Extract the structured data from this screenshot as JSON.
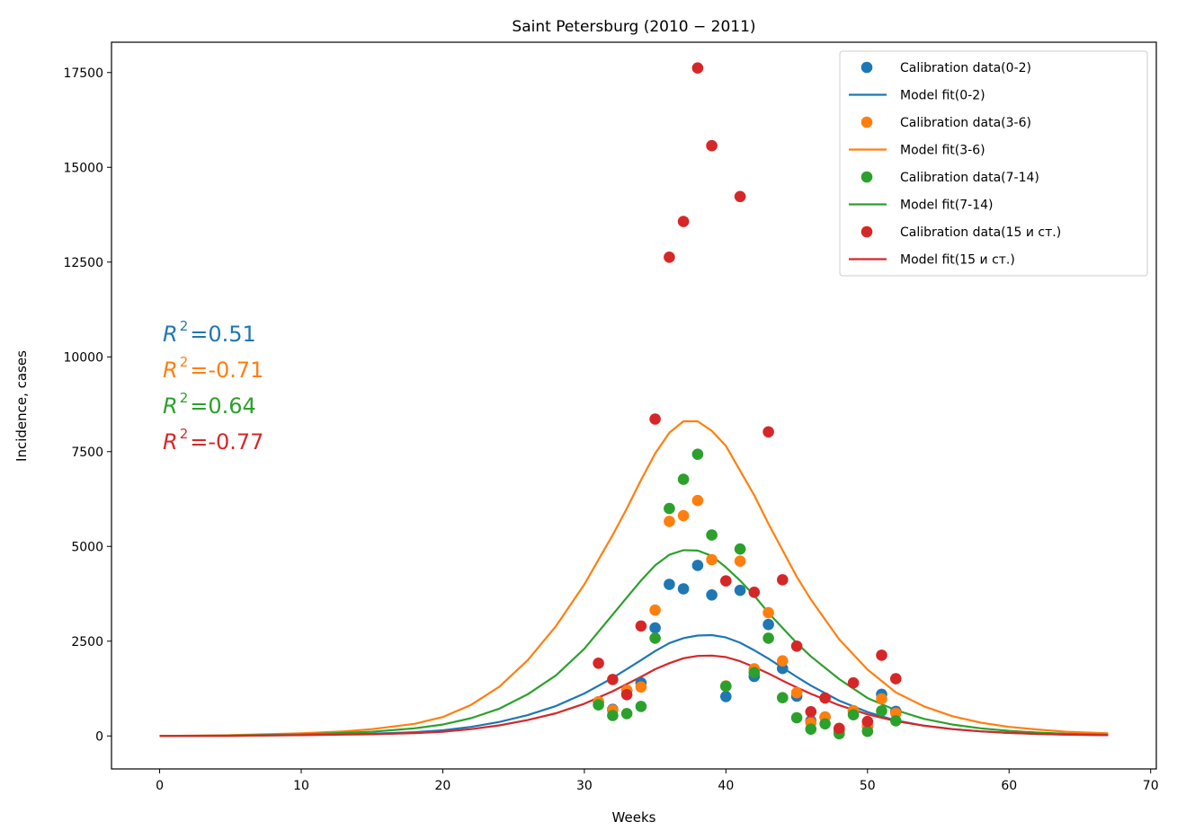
{
  "chart_data": {
    "type": "scatter",
    "title": "Saint Petersburg (2010 − 2011)",
    "xlabel": "Weeks",
    "ylabel": "Incidence, cases",
    "xlim": [
      -3.4,
      70.4
    ],
    "ylim": [
      -870,
      18300
    ],
    "xticks": [
      0,
      10,
      20,
      30,
      40,
      50,
      60,
      70
    ],
    "yticks": [
      0,
      2500,
      5000,
      7500,
      10000,
      12500,
      15000,
      17500
    ],
    "grid": false,
    "legend_position": "top-right",
    "legend": [
      {
        "label": "Calibration data(0-2)",
        "kind": "marker",
        "color": "#1f77b4"
      },
      {
        "label": "Model fit(0-2)",
        "kind": "line",
        "color": "#1f77b4"
      },
      {
        "label": "Calibration data(3-6)",
        "kind": "marker",
        "color": "#ff7f0e"
      },
      {
        "label": "Model fit(3-6)",
        "kind": "line",
        "color": "#ff7f0e"
      },
      {
        "label": "Calibration data(7-14)",
        "kind": "marker",
        "color": "#2ca02c"
      },
      {
        "label": "Model fit(7-14)",
        "kind": "line",
        "color": "#2ca02c"
      },
      {
        "label": "Calibration data(15 и ст.)",
        "kind": "marker",
        "color": "#d62728"
      },
      {
        "label": "Model fit(15 и ст.)",
        "kind": "line",
        "color": "#d62728"
      }
    ],
    "annotations": [
      {
        "prefix": "R",
        "sup": "2",
        "value": "=0.51",
        "color": "#1f77b4"
      },
      {
        "prefix": "R",
        "sup": "2",
        "value": "=-0.71",
        "color": "#ff7f0e"
      },
      {
        "prefix": "R",
        "sup": "2",
        "value": "=0.64",
        "color": "#2ca02c"
      },
      {
        "prefix": "R",
        "sup": "2",
        "value": "=-0.77",
        "color": "#d62728"
      }
    ],
    "series": [
      {
        "name": "Calibration data(0-2)",
        "kind": "scatter",
        "color": "#1f77b4",
        "x": [
          31,
          32,
          33,
          34,
          35,
          36,
          37,
          38,
          39,
          40,
          41,
          42,
          43,
          44,
          45,
          46,
          47,
          48,
          49,
          50,
          51,
          52
        ],
        "y": [
          900,
          700,
          1200,
          1400,
          2850,
          4000,
          3880,
          4500,
          3720,
          1040,
          3840,
          1570,
          2940,
          1780,
          1050,
          400,
          500,
          140,
          640,
          250,
          1100,
          650
        ]
      },
      {
        "name": "Calibration data(3-6)",
        "kind": "scatter",
        "color": "#ff7f0e",
        "x": [
          31,
          32,
          33,
          34,
          35,
          36,
          37,
          38,
          39,
          40,
          41,
          42,
          43,
          44,
          45,
          46,
          47,
          48,
          49,
          50,
          51,
          52
        ],
        "y": [
          900,
          680,
          1200,
          1290,
          3320,
          5660,
          5810,
          6210,
          4650,
          1320,
          4610,
          1770,
          3250,
          1980,
          1140,
          350,
          500,
          170,
          670,
          270,
          980,
          600
        ]
      },
      {
        "name": "Calibration data(7-14)",
        "kind": "scatter",
        "color": "#2ca02c",
        "x": [
          31,
          32,
          33,
          34,
          35,
          36,
          37,
          38,
          39,
          40,
          41,
          42,
          43,
          44,
          45,
          46,
          47,
          48,
          49,
          50,
          51,
          52
        ],
        "y": [
          820,
          540,
          590,
          780,
          2580,
          6000,
          6770,
          7430,
          5300,
          1310,
          4930,
          1670,
          2580,
          1010,
          480,
          180,
          320,
          60,
          560,
          120,
          660,
          400
        ]
      },
      {
        "name": "Calibration data(15 и ст.)",
        "kind": "scatter",
        "color": "#d62728",
        "x": [
          31,
          32,
          33,
          34,
          35,
          36,
          37,
          38,
          39,
          40,
          41,
          42,
          43,
          44,
          45,
          46,
          47,
          48,
          49,
          50,
          51,
          52
        ],
        "y": [
          1920,
          1490,
          1090,
          2900,
          8360,
          12630,
          13570,
          17620,
          15570,
          4090,
          14230,
          3790,
          8020,
          4120,
          2370,
          640,
          1000,
          200,
          1400,
          380,
          2130,
          1510
        ]
      },
      {
        "name": "Model fit(0-2)",
        "kind": "line",
        "color": "#1f77b4",
        "x": [
          0,
          5,
          10,
          15,
          18,
          20,
          22,
          24,
          26,
          28,
          30,
          32,
          34,
          35,
          36,
          37,
          38,
          39,
          40,
          41,
          42,
          43,
          44,
          45,
          46,
          48,
          50,
          52,
          54,
          56,
          58,
          60,
          62,
          64,
          67
        ],
        "y": [
          0,
          5,
          25,
          60,
          100,
          150,
          240,
          370,
          550,
          790,
          1120,
          1530,
          2000,
          2240,
          2450,
          2580,
          2650,
          2660,
          2600,
          2460,
          2260,
          2040,
          1800,
          1560,
          1330,
          930,
          630,
          410,
          270,
          180,
          120,
          80,
          55,
          35,
          20
        ]
      },
      {
        "name": "Model fit(3-6)",
        "kind": "line",
        "color": "#ff7f0e",
        "x": [
          0,
          5,
          10,
          13,
          15,
          18,
          20,
          22,
          24,
          26,
          28,
          30,
          32,
          33,
          34,
          35,
          36,
          37,
          38,
          39,
          40,
          41,
          42,
          43,
          44,
          45,
          46,
          48,
          50,
          52,
          54,
          56,
          58,
          60,
          62,
          64,
          67
        ],
        "y": [
          0,
          20,
          70,
          120,
          180,
          320,
          500,
          820,
          1300,
          2000,
          2900,
          4000,
          5300,
          6000,
          6750,
          7450,
          8000,
          8300,
          8300,
          8050,
          7650,
          7000,
          6350,
          5600,
          4900,
          4200,
          3600,
          2550,
          1750,
          1150,
          780,
          520,
          350,
          240,
          170,
          110,
          70
        ]
      },
      {
        "name": "Model fit(7-14)",
        "kind": "line",
        "color": "#2ca02c",
        "x": [
          0,
          5,
          10,
          15,
          18,
          20,
          22,
          24,
          26,
          28,
          30,
          32,
          33,
          34,
          35,
          36,
          37,
          38,
          39,
          40,
          41,
          42,
          43,
          44,
          45,
          46,
          48,
          50,
          52,
          54,
          56,
          58,
          60,
          62,
          64,
          67
        ],
        "y": [
          0,
          10,
          40,
          110,
          200,
          300,
          470,
          720,
          1100,
          1600,
          2300,
          3200,
          3650,
          4100,
          4500,
          4780,
          4900,
          4890,
          4750,
          4450,
          4100,
          3700,
          3250,
          2850,
          2450,
          2100,
          1500,
          1000,
          680,
          450,
          300,
          200,
          135,
          90,
          60,
          35
        ]
      },
      {
        "name": "Model fit(15 и ст.)",
        "kind": "line",
        "color": "#d62728",
        "x": [
          0,
          5,
          10,
          15,
          18,
          20,
          22,
          24,
          26,
          28,
          30,
          32,
          34,
          35,
          36,
          37,
          38,
          39,
          40,
          41,
          42,
          43,
          44,
          45,
          46,
          48,
          50,
          52,
          54,
          56,
          58,
          60,
          62,
          64,
          67
        ],
        "y": [
          0,
          5,
          20,
          45,
          75,
          110,
          180,
          280,
          420,
          600,
          850,
          1180,
          1560,
          1760,
          1920,
          2050,
          2110,
          2120,
          2080,
          1970,
          1820,
          1650,
          1460,
          1280,
          1110,
          810,
          570,
          390,
          270,
          180,
          120,
          80,
          55,
          35,
          20
        ]
      }
    ]
  }
}
